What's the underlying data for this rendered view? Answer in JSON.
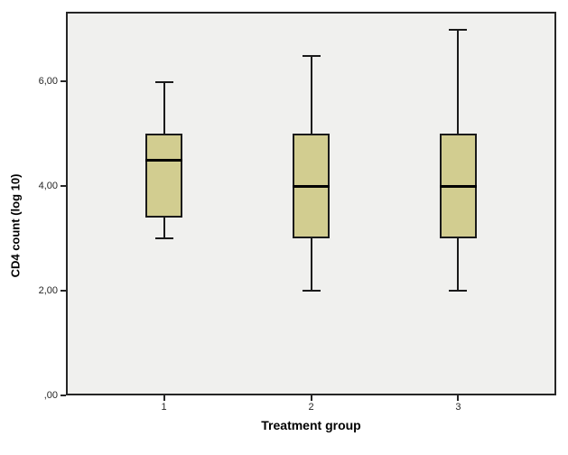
{
  "chart_data": {
    "type": "boxplot",
    "title": "",
    "xlabel": "Treatment group",
    "ylabel": "CD4 count (log 10)",
    "categories": [
      "1",
      "2",
      "3"
    ],
    "series": [
      {
        "name": "Treatment group 1",
        "min": 3.0,
        "q1": 3.4,
        "median": 4.5,
        "q3": 5.0,
        "max": 6.0
      },
      {
        "name": "Treatment group 2",
        "min": 2.0,
        "q1": 3.0,
        "median": 4.0,
        "q3": 5.0,
        "max": 6.5
      },
      {
        "name": "Treatment group 3",
        "min": 2.0,
        "q1": 3.0,
        "median": 4.0,
        "q3": 5.0,
        "max": 7.0
      }
    ],
    "ylim": [
      0,
      7.33
    ],
    "yticks": [
      {
        "value": 0,
        "label": ",00"
      },
      {
        "value": 2,
        "label": "2,00"
      },
      {
        "value": 4,
        "label": "4,00"
      },
      {
        "value": 6,
        "label": "6,00"
      }
    ],
    "grid": false,
    "legend": false,
    "outliers": [],
    "colors": {
      "box_fill": "#d2cd90",
      "box_border": "#1a1a1a",
      "median": "#000000",
      "whisker": "#1a1a1a",
      "tick": "#262626",
      "tick_label": "#262626",
      "axis_title": "#000000",
      "plot_background": "#f0f0ee",
      "figure_background": "#ffffff"
    }
  }
}
